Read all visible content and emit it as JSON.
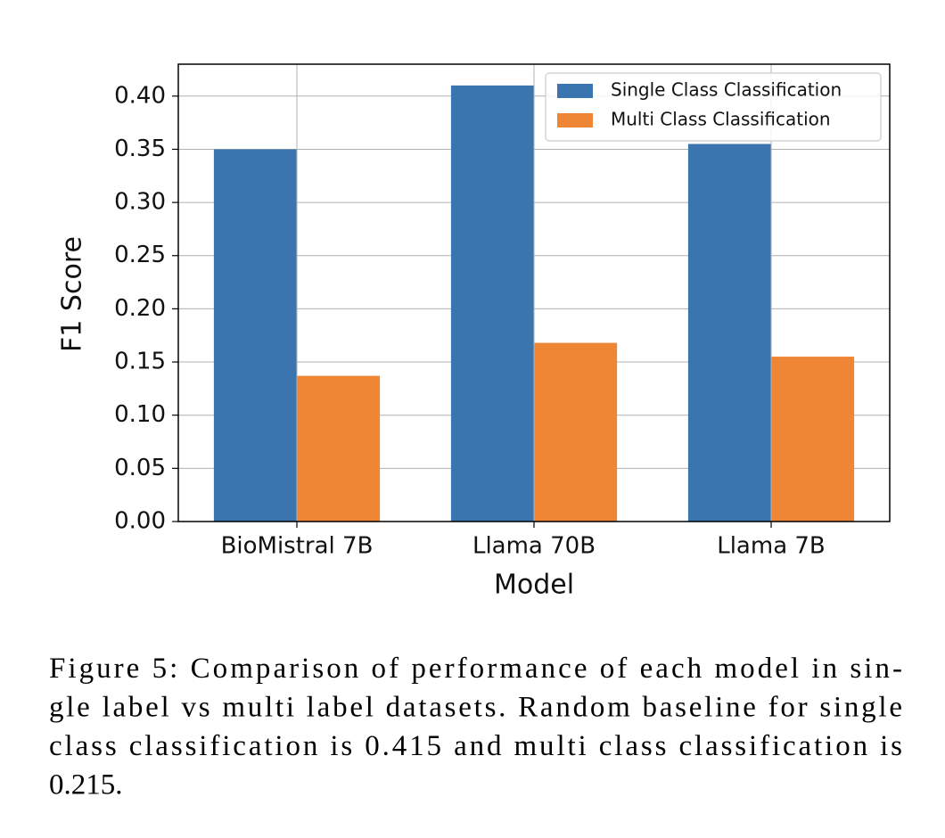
{
  "chart_data": {
    "type": "bar",
    "categories": [
      "BioMistral 7B",
      "Llama 70B",
      "Llama 7B"
    ],
    "series": [
      {
        "name": "Single Class Classification",
        "color": "#3a75b0",
        "values": [
          0.35,
          0.41,
          0.355
        ]
      },
      {
        "name": "Multi Class Classification",
        "color": "#ef8636",
        "values": [
          0.137,
          0.168,
          0.155
        ]
      }
    ],
    "xlabel": "Model",
    "ylabel": "F1 Score",
    "ylim": [
      0,
      0.43
    ],
    "yticks": [
      {
        "value": 0,
        "label": "0.00"
      },
      {
        "value": 0.05,
        "label": "0.05"
      },
      {
        "value": 0.1,
        "label": "0.10"
      },
      {
        "value": 0.15,
        "label": "0.15"
      },
      {
        "value": 0.2,
        "label": "0.20"
      },
      {
        "value": 0.25,
        "label": "0.25"
      },
      {
        "value": 0.3,
        "label": "0.30"
      },
      {
        "value": 0.35,
        "label": "0.35"
      },
      {
        "value": 0.4,
        "label": "0.40"
      }
    ],
    "grid": true,
    "legend": "upper-right"
  },
  "caption": {
    "lines": [
      "Figure 5: Comparison of performance of each model in sin-",
      "gle label vs multi label datasets. Random baseline for single",
      "class classification is 0.415 and multi class classification is",
      "0.215."
    ]
  }
}
